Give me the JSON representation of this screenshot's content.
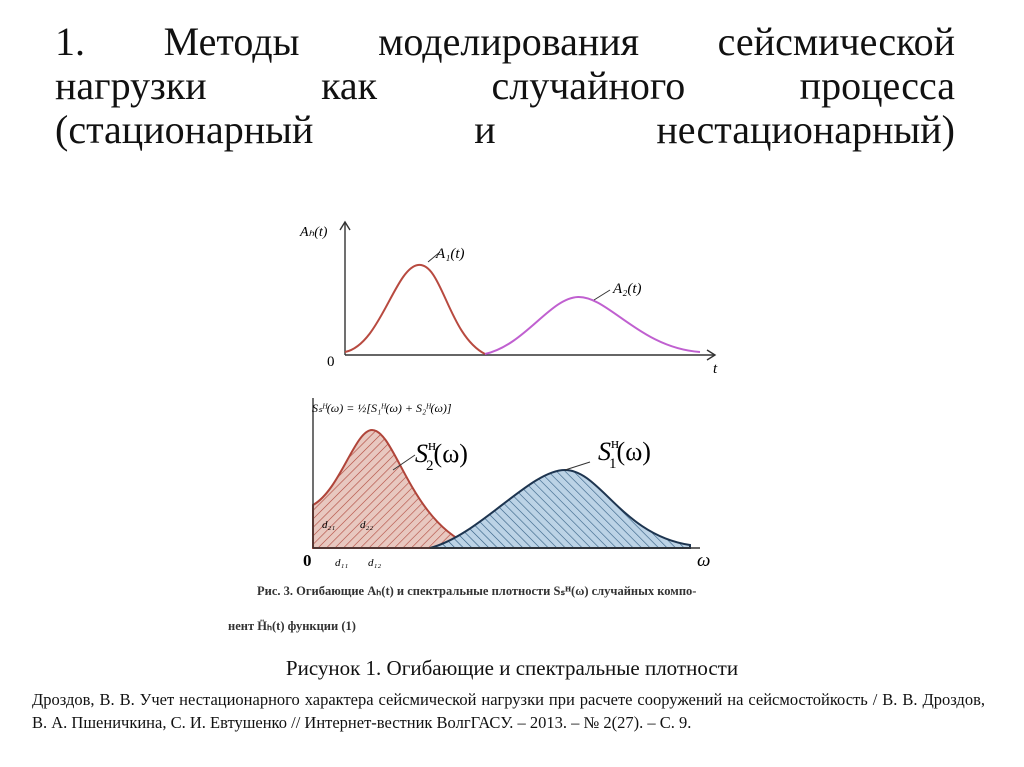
{
  "title_lines": [
    "1. Методы моделирования сейсмической",
    "нагрузки как случайного процесса",
    "(стационарный и нестационарный)"
  ],
  "figure": {
    "top": {
      "y_axis": "Aₕ(t)",
      "origin": "0",
      "x_axis": "t",
      "curve_1": "A₁(t)",
      "curve_2": "A₂(t)"
    },
    "bottom": {
      "formula": "Sₛᴴ(ω) = ½[S₁ᴴ(ω) + S₂ᴴ(ω)]",
      "origin": "0",
      "x_axis": "ω",
      "label_2": {
        "base": "S",
        "sub": "2",
        "sup": "н",
        "arg": "(ω)"
      },
      "label_1": {
        "base": "S",
        "sub": "1",
        "sup": "н",
        "arg": "(ω)"
      },
      "d_labels": [
        "d₂₁",
        "d₂₂",
        "d₁₁",
        "d₁₂"
      ]
    },
    "caption_lines": [
      "Рис. 3. Огибающие Aₕ(t) и спектральные плотности Sₛᴴ(ω) случайных компо-",
      "нент Ḧₕ(t) функции (1)"
    ]
  },
  "caption": "Рисунок 1. Огибающие и спектральные плотности",
  "reference": "Дроздов, В. В. Учет нестационарного характера сейсмической нагрузки при расчете сооружений на сейсмостойкость / В. В. Дроздов, В. А. Пшеничкина, С. И. Евтушенко // Интернет-вестник ВолгГАСУ. – 2013. – № 2(27). – С. 9."
}
